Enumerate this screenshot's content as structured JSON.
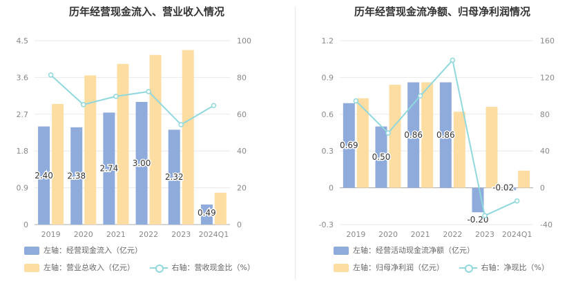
{
  "chart_data": [
    {
      "type": "bar",
      "title": "历年经营现金流入、营业收入情况",
      "categories": [
        "2019",
        "2020",
        "2021",
        "2022",
        "2023",
        "2024Q1"
      ],
      "y_left": {
        "ticks": [
          "0",
          "0.9",
          "1.8",
          "2.7",
          "3.6",
          "4.5"
        ],
        "ylim": [
          0,
          4.5
        ]
      },
      "y_right": {
        "ticks": [
          "0",
          "20",
          "40",
          "60",
          "80",
          "100"
        ],
        "ylim": [
          0,
          100
        ]
      },
      "series": [
        {
          "name": "左轴：经营现金流入（亿元）",
          "type": "bar",
          "axis": "left",
          "color": "#8eabdc",
          "values": [
            2.4,
            2.38,
            2.74,
            3.0,
            2.32,
            0.49
          ],
          "labels": [
            "2.40",
            "2.38",
            "2.74",
            "3.00",
            "2.32",
            "0.49"
          ]
        },
        {
          "name": "左轴：营业总收入（亿元）",
          "type": "bar",
          "axis": "left",
          "color": "#fedda3",
          "values": [
            2.95,
            3.65,
            3.93,
            4.15,
            4.27,
            0.78
          ]
        },
        {
          "name": "右轴：营收现金比（%）",
          "type": "line",
          "axis": "right",
          "color": "#8fd8dd",
          "values": [
            81.3,
            65.2,
            69.7,
            72.3,
            54.3,
            64.7
          ]
        }
      ],
      "grid": true
    },
    {
      "type": "bar",
      "title": "历年经营现金流净额、归母净利润情况",
      "categories": [
        "2019",
        "2020",
        "2021",
        "2022",
        "2023",
        "2024Q1"
      ],
      "y_left": {
        "ticks": [
          "-0.3",
          "0",
          "0.3",
          "0.6",
          "0.9",
          "1.2"
        ],
        "ylim": [
          -0.3,
          1.2
        ]
      },
      "y_right": {
        "ticks": [
          "-40",
          "0",
          "40",
          "80",
          "120",
          "160"
        ],
        "ylim": [
          -40,
          160
        ]
      },
      "series": [
        {
          "name": "左轴：经营活动现金流净额（亿元）",
          "type": "bar",
          "axis": "left",
          "color": "#8eabdc",
          "values": [
            0.69,
            0.5,
            0.86,
            0.86,
            -0.2,
            -0.02
          ],
          "labels": [
            "0.69",
            "0.50",
            "0.86",
            "0.86",
            "-0.20",
            "-0.02"
          ]
        },
        {
          "name": "左轴：归母净利润（亿元）",
          "type": "bar",
          "axis": "left",
          "color": "#fedda3",
          "values": [
            0.73,
            0.84,
            0.86,
            0.62,
            0.66,
            0.14
          ]
        },
        {
          "name": "右轴：净现比（%）",
          "type": "line",
          "axis": "right",
          "color": "#8fd8dd",
          "values": [
            94.5,
            59.5,
            100.0,
            138.7,
            -30.3,
            -14.3
          ]
        }
      ],
      "grid": true
    }
  ]
}
